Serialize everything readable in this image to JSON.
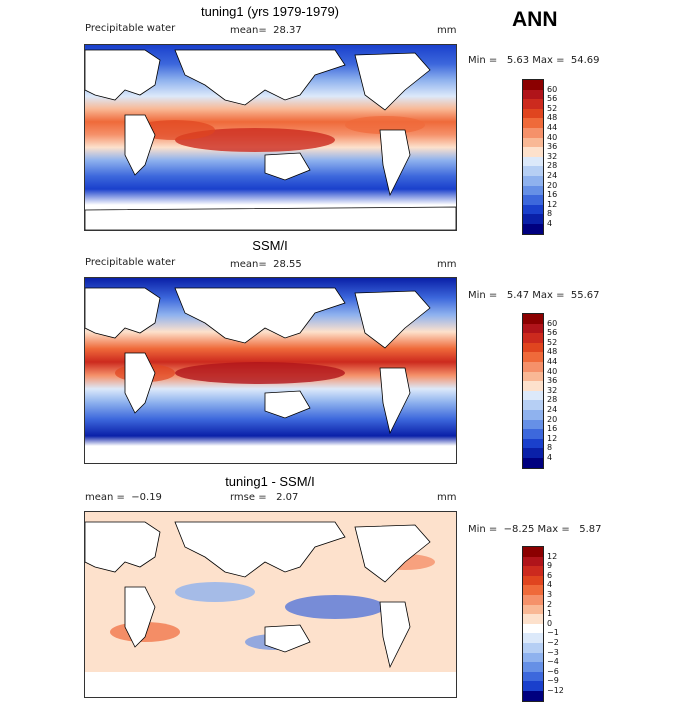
{
  "header": {
    "season": "ANN"
  },
  "panels": [
    {
      "title": "tuning1 (yrs 1979-1979)",
      "variable": "Precipitable water",
      "stat_text": "mean=  28.37",
      "units": "mm",
      "range_text": "Min =   5.63 Max =  54.69",
      "colorbar": {
        "labels": [
          "60",
          "56",
          "52",
          "48",
          "44",
          "40",
          "36",
          "32",
          "28",
          "24",
          "20",
          "16",
          "12",
          "8",
          "4"
        ],
        "colors": [
          "#8b0000",
          "#b0141a",
          "#cc2a1e",
          "#e0451f",
          "#ef6a3a",
          "#f5916a",
          "#f9b895",
          "#fde1cc",
          "#dce9fa",
          "#b6cff4",
          "#8fb2ee",
          "#6690e6",
          "#3d68dc",
          "#1a40cc",
          "#0a20a8",
          "#00007f"
        ]
      }
    },
    {
      "title": "SSM/I",
      "variable": "Precipitable water",
      "stat_text": "mean=  28.55",
      "units": "mm",
      "range_text": "Min =   5.47 Max =  55.67",
      "colorbar": {
        "labels": [
          "60",
          "56",
          "52",
          "48",
          "44",
          "40",
          "36",
          "32",
          "28",
          "24",
          "20",
          "16",
          "12",
          "8",
          "4"
        ],
        "colors": [
          "#8b0000",
          "#b0141a",
          "#cc2a1e",
          "#e0451f",
          "#ef6a3a",
          "#f5916a",
          "#f9b895",
          "#fde1cc",
          "#dce9fa",
          "#b6cff4",
          "#8fb2ee",
          "#6690e6",
          "#3d68dc",
          "#1a40cc",
          "#0a20a8",
          "#00007f"
        ]
      }
    },
    {
      "title": "tuning1 - SSM/I",
      "variable": "mean =  −0.19",
      "stat_text": "rmse =   2.07",
      "units": "mm",
      "range_text": "Min =  −8.25 Max =   5.87",
      "colorbar": {
        "labels": [
          "12",
          "9",
          "6",
          "4",
          "3",
          "2",
          "1",
          "0",
          "−1",
          "−2",
          "−3",
          "−4",
          "−6",
          "−9",
          "−12"
        ],
        "colors": [
          "#8b0000",
          "#b0141a",
          "#cc2a1e",
          "#e0451f",
          "#ef6a3a",
          "#f5916a",
          "#f9b895",
          "#fde1cc",
          "#ffffff",
          "#dce9fa",
          "#b6cff4",
          "#8fb2ee",
          "#6690e6",
          "#3d68dc",
          "#1a40cc",
          "#00007f"
        ]
      }
    }
  ]
}
